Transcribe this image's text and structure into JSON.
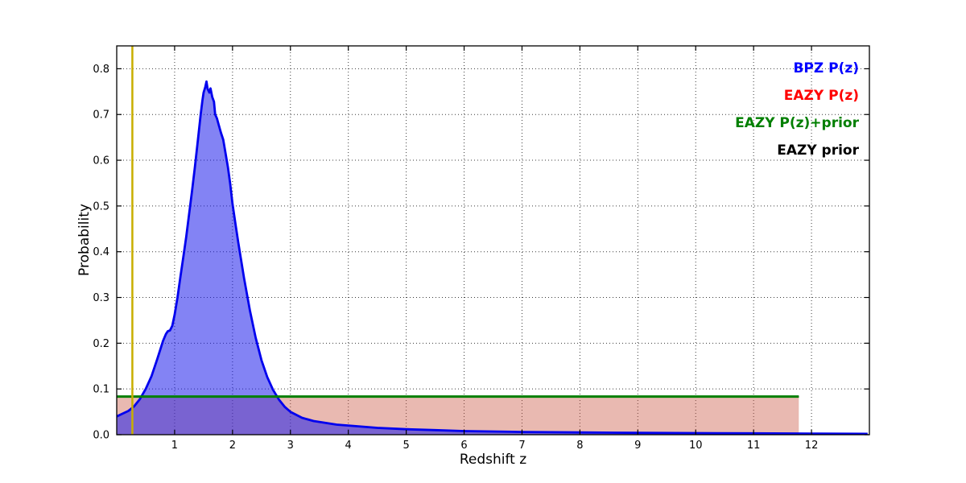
{
  "figure": {
    "background": "#ffffff"
  },
  "legend": {
    "items": [
      {
        "label": "BPZ P(z)",
        "color": "#0000ff"
      },
      {
        "label": "EAZY P(z)",
        "color": "#ff0000"
      },
      {
        "label": "EAZY P(z)+prior",
        "color": "#007f00"
      },
      {
        "label": "EAZY prior",
        "color": "#000000"
      }
    ]
  },
  "chart_data": {
    "type": "line",
    "title": "",
    "xlabel": "Redshift z",
    "ylabel": "Probability",
    "xlim": [
      0,
      13
    ],
    "ylim": [
      0,
      0.85
    ],
    "x_ticks": [
      1,
      2,
      3,
      4,
      5,
      6,
      7,
      8,
      9,
      10,
      11,
      12
    ],
    "y_ticks": [
      0.0,
      0.1,
      0.2,
      0.3,
      0.4,
      0.5,
      0.6,
      0.7,
      0.8
    ],
    "grid": "dotted",
    "legend_position": "upper right",
    "series": [
      {
        "name": "EAZY P(z)",
        "slug": "eazy-pz",
        "color": "#ff0000",
        "fill": "rgba(200,80,60,0.40)",
        "line_width": 0,
        "x": [
          0,
          11.78
        ],
        "y": [
          0.083,
          0.083
        ]
      },
      {
        "name": "BPZ P(z)",
        "slug": "bpz-pz",
        "color": "#0000ee",
        "fill": "rgba(30,30,235,0.55)",
        "line_width": 2.8,
        "x": [
          0.0,
          0.1,
          0.2,
          0.3,
          0.4,
          0.5,
          0.6,
          0.7,
          0.75,
          0.8,
          0.85,
          0.88,
          0.92,
          0.96,
          1.0,
          1.05,
          1.1,
          1.15,
          1.2,
          1.25,
          1.3,
          1.35,
          1.4,
          1.45,
          1.48,
          1.5,
          1.53,
          1.55,
          1.57,
          1.6,
          1.62,
          1.65,
          1.68,
          1.7,
          1.73,
          1.76,
          1.8,
          1.84,
          1.88,
          1.92,
          1.96,
          2.0,
          2.05,
          2.1,
          2.2,
          2.3,
          2.4,
          2.5,
          2.6,
          2.7,
          2.8,
          2.9,
          3.0,
          3.2,
          3.4,
          3.6,
          3.8,
          4.0,
          4.5,
          5.0,
          5.5,
          6.0,
          7.0,
          8.0,
          9.0,
          10.0,
          11.0,
          12.0,
          12.97
        ],
        "y": [
          0.04,
          0.046,
          0.052,
          0.062,
          0.078,
          0.1,
          0.128,
          0.165,
          0.185,
          0.205,
          0.22,
          0.226,
          0.228,
          0.238,
          0.262,
          0.3,
          0.345,
          0.388,
          0.432,
          0.482,
          0.532,
          0.585,
          0.642,
          0.7,
          0.73,
          0.748,
          0.76,
          0.772,
          0.756,
          0.748,
          0.757,
          0.738,
          0.728,
          0.7,
          0.692,
          0.678,
          0.66,
          0.645,
          0.615,
          0.585,
          0.548,
          0.505,
          0.462,
          0.42,
          0.342,
          0.272,
          0.212,
          0.163,
          0.126,
          0.098,
          0.077,
          0.061,
          0.05,
          0.037,
          0.03,
          0.026,
          0.022,
          0.02,
          0.015,
          0.012,
          0.01,
          0.008,
          0.006,
          0.005,
          0.004,
          0.0035,
          0.003,
          0.0025,
          0.002
        ]
      },
      {
        "name": "EAZY prior",
        "slug": "eazy-prior",
        "color": "#000000",
        "fill": null,
        "line_width": 1.8,
        "x": [
          0,
          11.78
        ],
        "y": [
          0.083,
          0.083
        ]
      },
      {
        "name": "EAZY P(z)+prior",
        "slug": "eazy-pz-prior",
        "color": "#007f00",
        "fill": null,
        "line_width": 3,
        "x": [
          0,
          11.78
        ],
        "y": [
          0.0835,
          0.0835
        ]
      }
    ],
    "vlines": [
      {
        "name": "z-marker",
        "x": 0.27,
        "color": "#c8ae00",
        "width": 2.5
      }
    ]
  }
}
